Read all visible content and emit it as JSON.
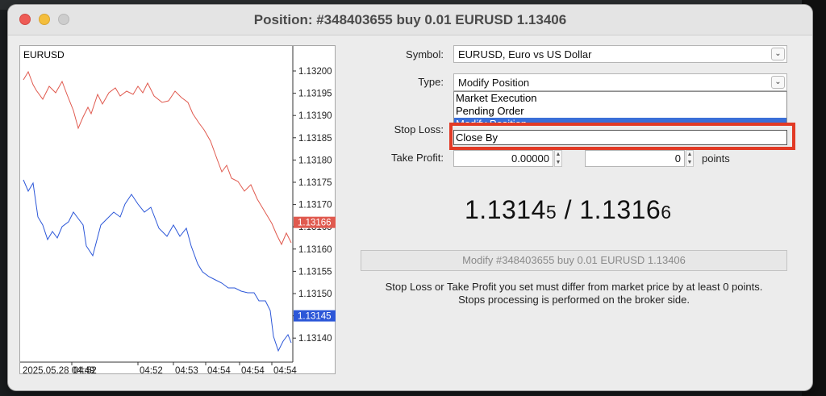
{
  "window": {
    "title": "Position: #348403655 buy 0.01 EURUSD 1.13406"
  },
  "chart": {
    "symbol": "EURUSD",
    "price_ticks": [
      "1.13200",
      "1.13195",
      "1.13190",
      "1.13185",
      "1.13180",
      "1.13175",
      "1.13170",
      "1.13165",
      "1.13160",
      "1.13155",
      "1.13150",
      "1.13145",
      "1.13140"
    ],
    "time_labels": [
      "2025.05.28 04:49",
      "04:52",
      "04:52",
      "04:53",
      "04:54",
      "04:54",
      "04:54"
    ],
    "ask_tag": "1.13166",
    "bid_tag": "1.13145",
    "colors": {
      "ask": "#e05a4f",
      "bid": "#2c57d8"
    }
  },
  "form": {
    "symbol_label": "Symbol:",
    "symbol_value": "EURUSD, Euro vs US Dollar",
    "type_label": "Type:",
    "type_value": "Modify Position",
    "type_options": [
      "Market Execution",
      "Pending Order",
      "Modify Position",
      "Close By"
    ],
    "stoploss_label": "Stop Loss:",
    "takeprofit_label": "Take Profit:",
    "takeprofit_value": "0.00000",
    "tp_points_value": "0",
    "points_label": "points"
  },
  "quote": {
    "bid_main": "1.1314",
    "bid_small": "5",
    "separator": " / ",
    "ask_main": "1.1316",
    "ask_small": "6"
  },
  "modify_button": "Modify #348403655 buy 0.01 EURUSD 1.13406",
  "notes": [
    "Stop Loss or Take Profit you set must differ from market price by at least 0 points.",
    "Stops processing is performed on the broker side."
  ]
}
